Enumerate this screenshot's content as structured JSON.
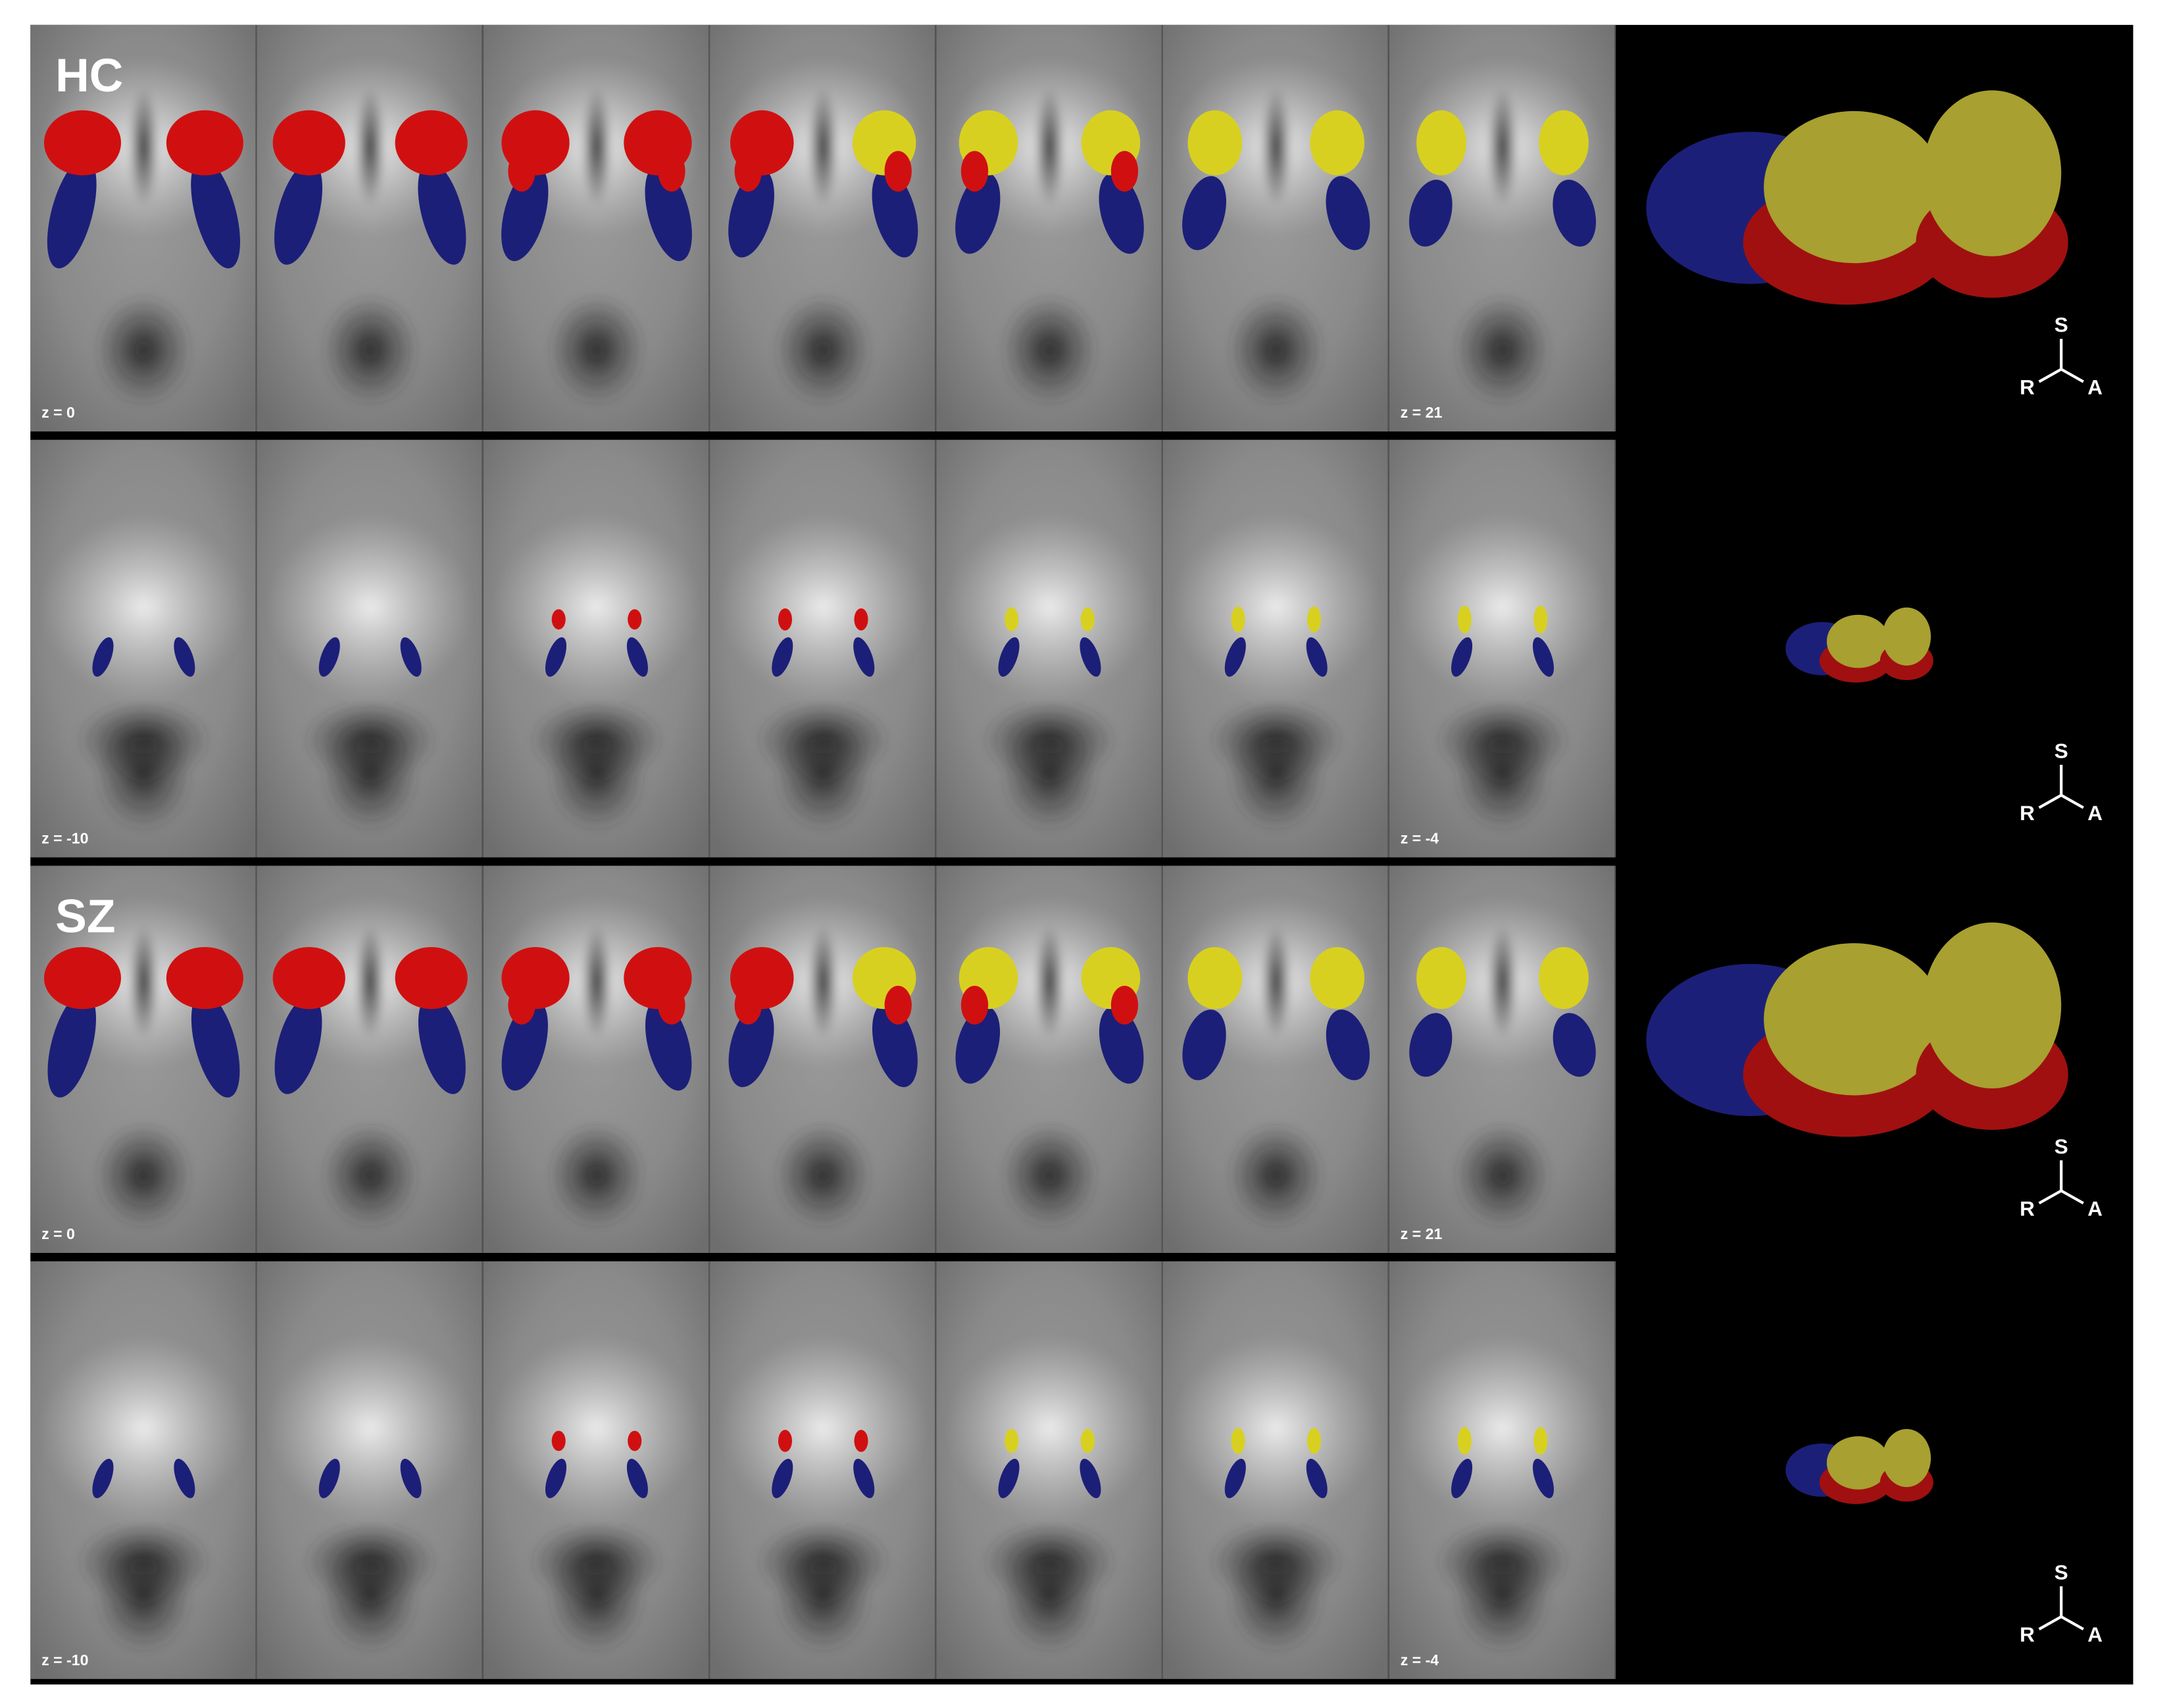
{
  "panels": [
    {
      "group": "HC",
      "z_first": "z = 0",
      "z_last": "z = 21",
      "axes": {
        "s": "S",
        "r": "R",
        "a": "A"
      }
    },
    {
      "z_first": "z = -10",
      "z_last": "z = -4",
      "axes": {
        "s": "S",
        "r": "R",
        "a": "A"
      }
    },
    {
      "group": "SZ",
      "z_first": "z = 0",
      "z_last": "z = 21",
      "axes": {
        "s": "S",
        "r": "R",
        "a": "A"
      }
    },
    {
      "z_first": "z = -10",
      "z_last": "z = -4",
      "axes": {
        "s": "S",
        "r": "R",
        "a": "A"
      }
    }
  ]
}
